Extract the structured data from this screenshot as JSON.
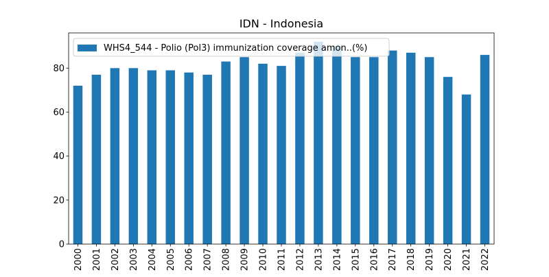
{
  "chart_data": {
    "type": "bar",
    "title": "IDN - Indonesia",
    "xlabel": "",
    "ylabel": "",
    "categories": [
      "2000",
      "2001",
      "2002",
      "2003",
      "2004",
      "2005",
      "2006",
      "2007",
      "2008",
      "2009",
      "2010",
      "2011",
      "2012",
      "2013",
      "2014",
      "2015",
      "2016",
      "2017",
      "2018",
      "2019",
      "2020",
      "2021",
      "2022"
    ],
    "series": [
      {
        "name": "WHS4_544 - Polio (Pol3) immunization coverage amon..(%)",
        "color": "#1f77b4",
        "values": [
          72,
          77,
          80,
          80,
          79,
          79,
          78,
          77,
          83,
          85,
          82,
          81,
          87,
          92,
          90,
          85,
          85,
          88,
          87,
          85,
          76,
          68,
          86
        ]
      }
    ],
    "ylim": [
      0,
      96
    ],
    "yticks": [
      0,
      20,
      40,
      60,
      80
    ],
    "grid": false,
    "legend_position": "top-left"
  }
}
